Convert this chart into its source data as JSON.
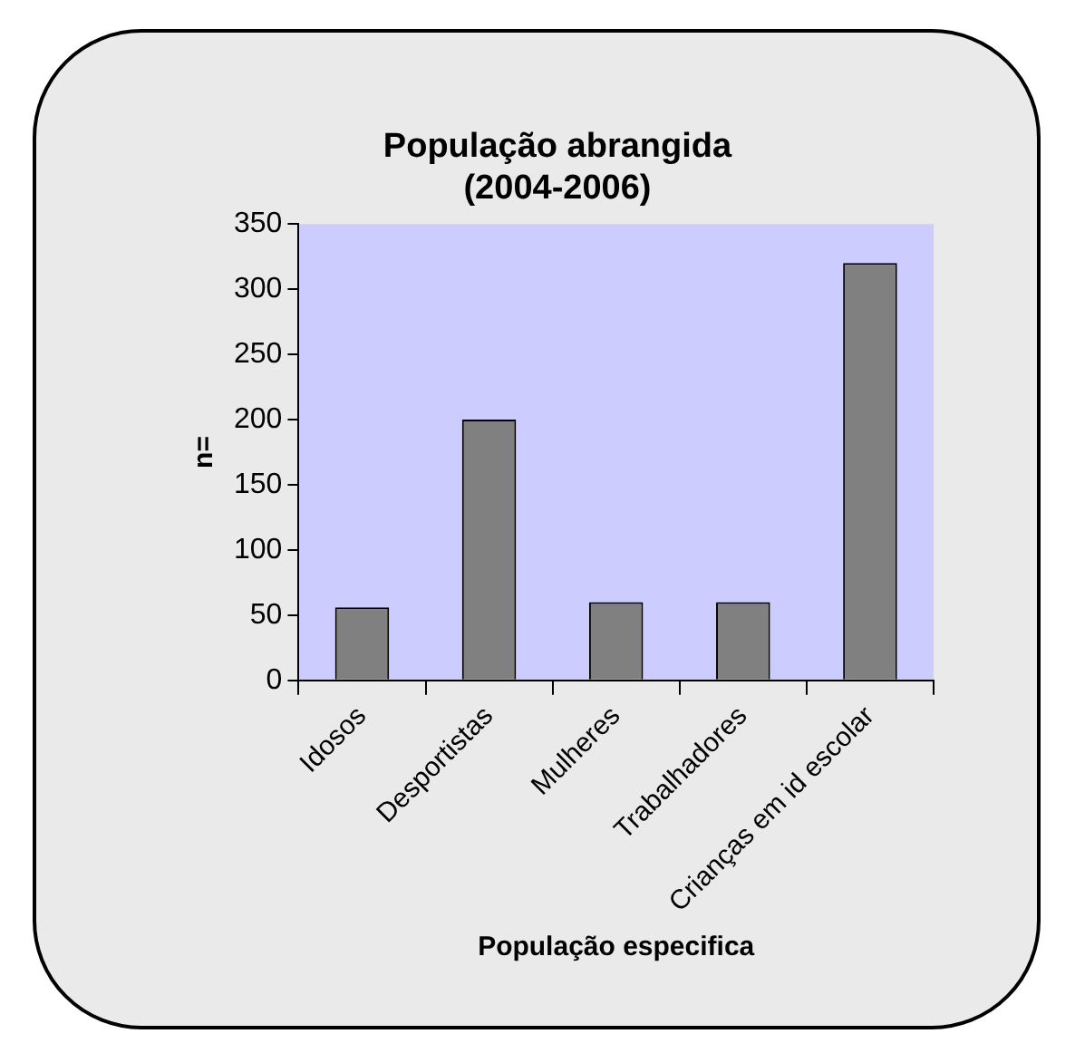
{
  "chart_data": {
    "type": "bar",
    "title": [
      "População abrangida",
      "(2004-2006)"
    ],
    "xlabel": "População especifica",
    "ylabel": "n=",
    "categories": [
      "Idosos",
      "Desportistas",
      "Mulheres",
      "Trabalhadores",
      "Crianças em id escolar"
    ],
    "values": [
      56,
      200,
      60,
      60,
      320
    ],
    "color": "#808080",
    "ylim": [
      0,
      350
    ],
    "yticks": [
      0,
      50,
      100,
      150,
      200,
      250,
      300,
      350
    ],
    "grid": false,
    "legend": false
  }
}
